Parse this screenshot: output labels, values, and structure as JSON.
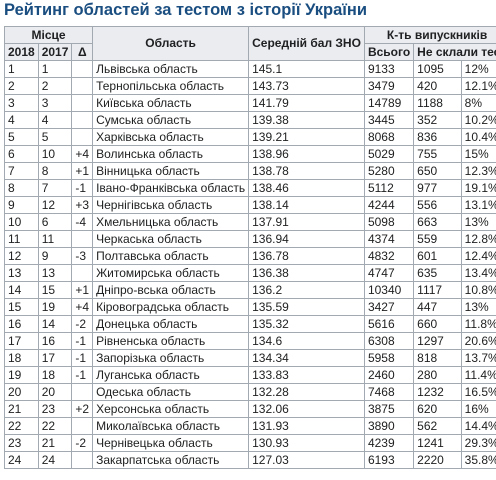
{
  "title": "Рейтинг областей за тестом з історії України",
  "headers": {
    "place": "Місце",
    "y2018": "2018",
    "y2017": "2017",
    "delta": "Δ",
    "region": "Область",
    "score": "Середній бал ЗНО",
    "graduates": "К-ть випускників",
    "total": "Всього",
    "failed": "Не склали тест"
  },
  "rows": [
    {
      "p2018": "1",
      "p2017": "1",
      "delta": "",
      "region": "Львівська область",
      "score": "145.1",
      "total": "9133",
      "failed": "1095",
      "pct": "12%"
    },
    {
      "p2018": "2",
      "p2017": "2",
      "delta": "",
      "region": "Тернопільська область",
      "score": "143.73",
      "total": "3479",
      "failed": "420",
      "pct": "12.1%"
    },
    {
      "p2018": "3",
      "p2017": "3",
      "delta": "",
      "region": "Київська область",
      "score": "141.79",
      "total": "14789",
      "failed": "1188",
      "pct": "8%"
    },
    {
      "p2018": "4",
      "p2017": "4",
      "delta": "",
      "region": "Сумська область",
      "score": "139.38",
      "total": "3445",
      "failed": "352",
      "pct": "10.2%"
    },
    {
      "p2018": "5",
      "p2017": "5",
      "delta": "",
      "region": "Харківська область",
      "score": "139.21",
      "total": "8068",
      "failed": "836",
      "pct": "10.4%"
    },
    {
      "p2018": "6",
      "p2017": "10",
      "delta": "+4",
      "region": "Волинська область",
      "score": "138.96",
      "total": "5029",
      "failed": "755",
      "pct": "15%"
    },
    {
      "p2018": "7",
      "p2017": "8",
      "delta": "+1",
      "region": "Вінницька область",
      "score": "138.78",
      "total": "5280",
      "failed": "650",
      "pct": "12.3%"
    },
    {
      "p2018": "8",
      "p2017": "7",
      "delta": "-1",
      "region": "Івано-Франківська область",
      "score": "138.46",
      "total": "5112",
      "failed": "977",
      "pct": "19.1%"
    },
    {
      "p2018": "9",
      "p2017": "12",
      "delta": "+3",
      "region": "Чернігівська область",
      "score": "138.14",
      "total": "4244",
      "failed": "556",
      "pct": "13.1%"
    },
    {
      "p2018": "10",
      "p2017": "6",
      "delta": "-4",
      "region": "Хмельницька область",
      "score": "137.91",
      "total": "5098",
      "failed": "663",
      "pct": "13%"
    },
    {
      "p2018": "11",
      "p2017": "11",
      "delta": "",
      "region": "Черкаська область",
      "score": "136.94",
      "total": "4374",
      "failed": "559",
      "pct": "12.8%"
    },
    {
      "p2018": "12",
      "p2017": "9",
      "delta": "-3",
      "region": "Полтавська область",
      "score": "136.78",
      "total": "4832",
      "failed": "601",
      "pct": "12.4%"
    },
    {
      "p2018": "13",
      "p2017": "13",
      "delta": "",
      "region": "Житомирська область",
      "score": "136.38",
      "total": "4747",
      "failed": "635",
      "pct": "13.4%"
    },
    {
      "p2018": "14",
      "p2017": "15",
      "delta": "+1",
      "region": "Дніпро-вська область",
      "score": "136.2",
      "total": "10340",
      "failed": "1117",
      "pct": "10.8%"
    },
    {
      "p2018": "15",
      "p2017": "19",
      "delta": "+4",
      "region": "Кіровоградська область",
      "score": "135.59",
      "total": "3427",
      "failed": "447",
      "pct": "13%"
    },
    {
      "p2018": "16",
      "p2017": "14",
      "delta": "-2",
      "region": "Донецька область",
      "score": "135.32",
      "total": "5616",
      "failed": "660",
      "pct": "11.8%"
    },
    {
      "p2018": "17",
      "p2017": "16",
      "delta": "-1",
      "region": "Рівненська область",
      "score": "134.6",
      "total": "6308",
      "failed": "1297",
      "pct": "20.6%"
    },
    {
      "p2018": "18",
      "p2017": "17",
      "delta": "-1",
      "region": "Запорізька область",
      "score": "134.34",
      "total": "5958",
      "failed": "818",
      "pct": "13.7%"
    },
    {
      "p2018": "19",
      "p2017": "18",
      "delta": "-1",
      "region": "Луганська область",
      "score": "133.83",
      "total": "2460",
      "failed": "280",
      "pct": "11.4%"
    },
    {
      "p2018": "20",
      "p2017": "20",
      "delta": "",
      "region": "Одеська область",
      "score": "132.28",
      "total": "7468",
      "failed": "1232",
      "pct": "16.5%"
    },
    {
      "p2018": "21",
      "p2017": "23",
      "delta": "+2",
      "region": "Херсонська область",
      "score": "132.06",
      "total": "3875",
      "failed": "620",
      "pct": "16%"
    },
    {
      "p2018": "22",
      "p2017": "22",
      "delta": "",
      "region": "Миколаївська область",
      "score": "131.93",
      "total": "3890",
      "failed": "562",
      "pct": "14.4%"
    },
    {
      "p2018": "23",
      "p2017": "21",
      "delta": "-2",
      "region": "Чернівецька область",
      "score": "130.93",
      "total": "4239",
      "failed": "1241",
      "pct": "29.3%"
    },
    {
      "p2018": "24",
      "p2017": "24",
      "delta": "",
      "region": "Закарпатська область",
      "score": "127.03",
      "total": "6193",
      "failed": "2220",
      "pct": "35.8%"
    }
  ]
}
